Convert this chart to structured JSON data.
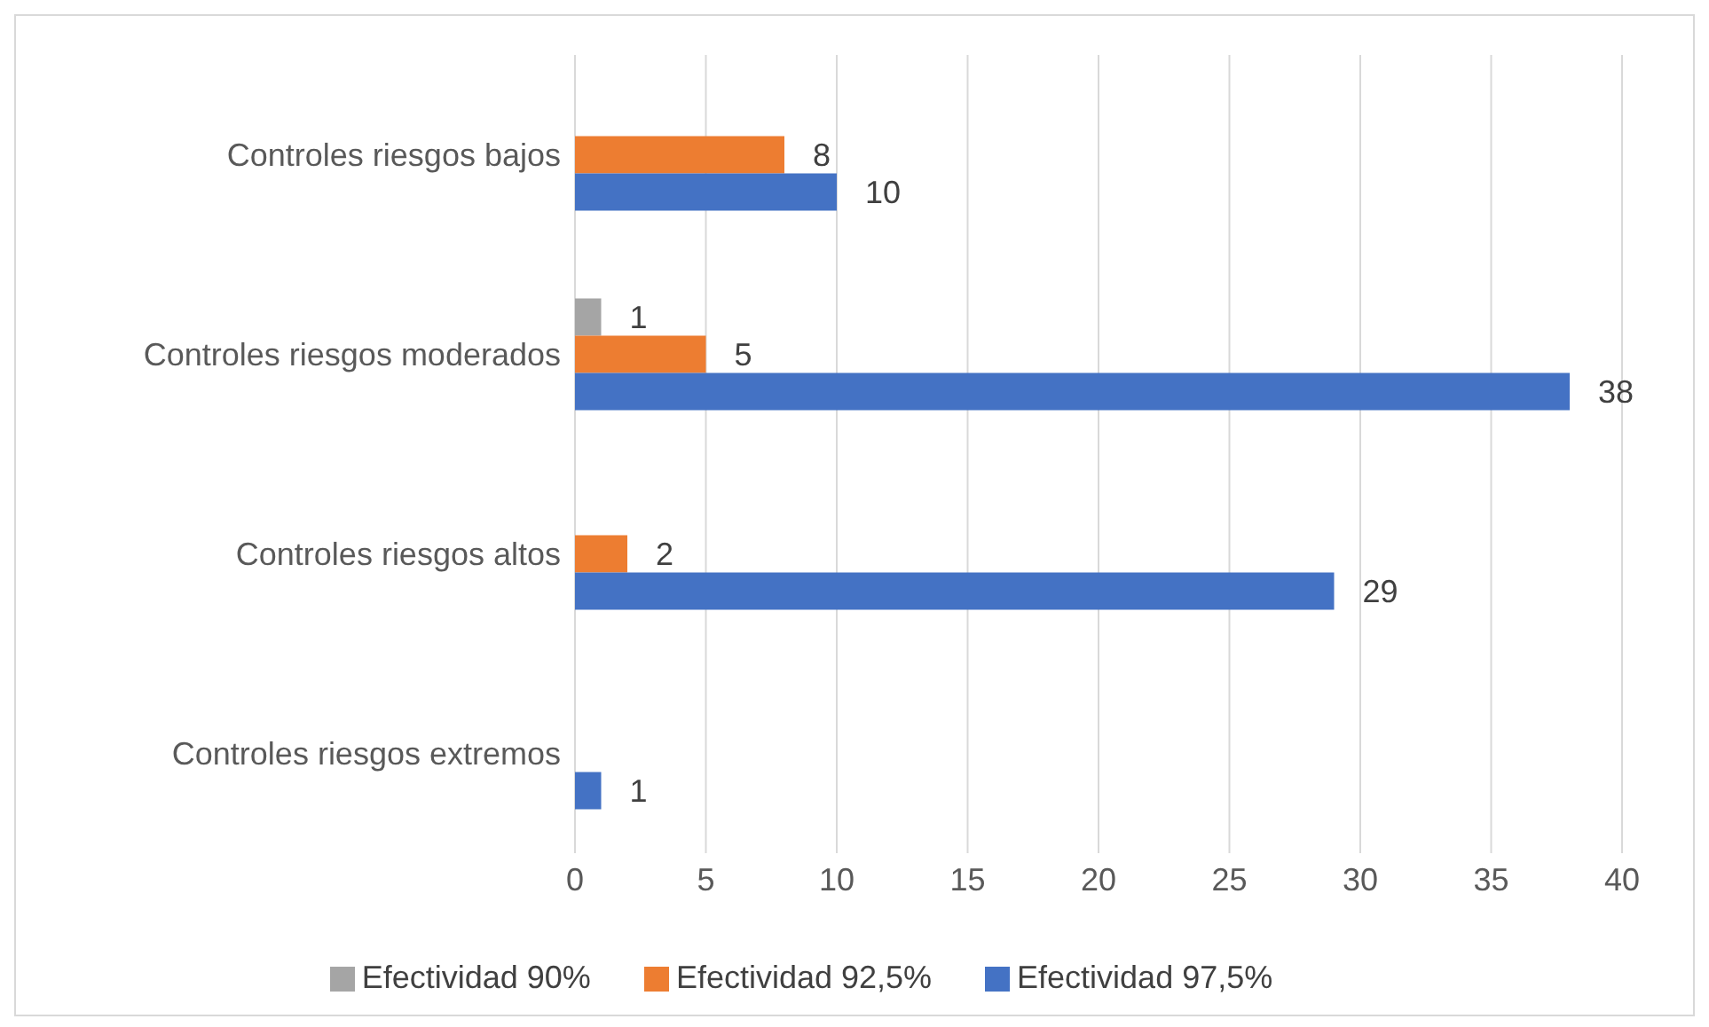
{
  "chart_data": {
    "type": "bar",
    "orientation": "horizontal",
    "categories": [
      "Controles riesgos bajos",
      "Controles riesgos moderados",
      "Controles riesgos altos",
      "Controles riesgos extremos"
    ],
    "series": [
      {
        "name": "Efectividad 90%",
        "color": "#a5a5a5",
        "values": [
          null,
          1,
          null,
          null
        ]
      },
      {
        "name": "Efectividad 92,5%",
        "color": "#ed7d31",
        "values": [
          8,
          5,
          2,
          null
        ]
      },
      {
        "name": "Efectividad 97,5%",
        "color": "#4472c4",
        "values": [
          10,
          38,
          29,
          1
        ]
      }
    ],
    "xlim": [
      0,
      40
    ],
    "xticks": [
      0,
      5,
      10,
      15,
      20,
      25,
      30,
      35,
      40
    ],
    "grid": "x",
    "legend": "bottom",
    "data_labels": true
  }
}
